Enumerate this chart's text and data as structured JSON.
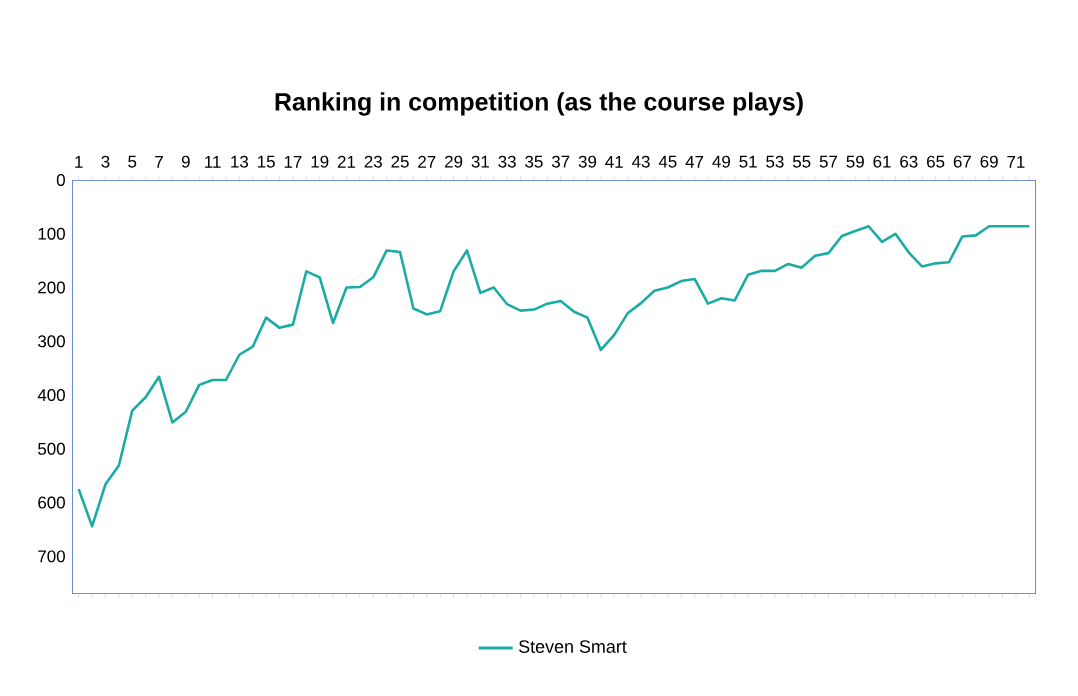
{
  "chart_data": {
    "type": "line",
    "title": "Ranking in competition (as the course plays)",
    "categories": [
      "1",
      null,
      "3",
      null,
      "5",
      null,
      "7",
      null,
      "9",
      null,
      "11",
      null,
      "13",
      null,
      "15",
      null,
      "17",
      null,
      "19",
      null,
      "21",
      null,
      "23",
      null,
      "25",
      null,
      "27",
      null,
      "29",
      null,
      "31",
      null,
      "33",
      null,
      "35",
      null,
      "37",
      null,
      "39",
      null,
      "41",
      null,
      "43",
      null,
      "45",
      null,
      "47",
      null,
      "49",
      null,
      "51",
      null,
      "53",
      null,
      "55",
      null,
      "57",
      null,
      "59",
      null,
      "61",
      null,
      "63",
      null,
      "65",
      null,
      "67",
      null,
      "69",
      null,
      "71",
      null
    ],
    "series": [
      {
        "name": "Steven Smart",
        "color": "#1aaca4",
        "values": [
          575,
          644,
          566,
          531,
          429,
          404,
          366,
          451,
          431,
          381,
          372,
          372,
          325,
          310,
          256,
          275,
          269,
          170,
          181,
          266,
          200,
          199,
          181,
          131,
          134,
          239,
          250,
          244,
          170,
          131,
          210,
          200,
          231,
          243,
          241,
          230,
          225,
          245,
          256,
          316,
          288,
          248,
          229,
          206,
          200,
          188,
          184,
          230,
          220,
          224,
          176,
          169,
          169,
          156,
          163,
          141,
          136,
          104,
          95,
          86,
          115,
          100,
          135,
          161,
          155,
          153,
          105,
          103,
          86,
          86,
          86,
          86
        ]
      }
    ],
    "ylim": [
      770,
      0
    ],
    "yticks": [
      0,
      100,
      200,
      300,
      400,
      500,
      600,
      700
    ],
    "legend": "bottom",
    "marker": "none",
    "line_style": "solid",
    "grid": false
  }
}
